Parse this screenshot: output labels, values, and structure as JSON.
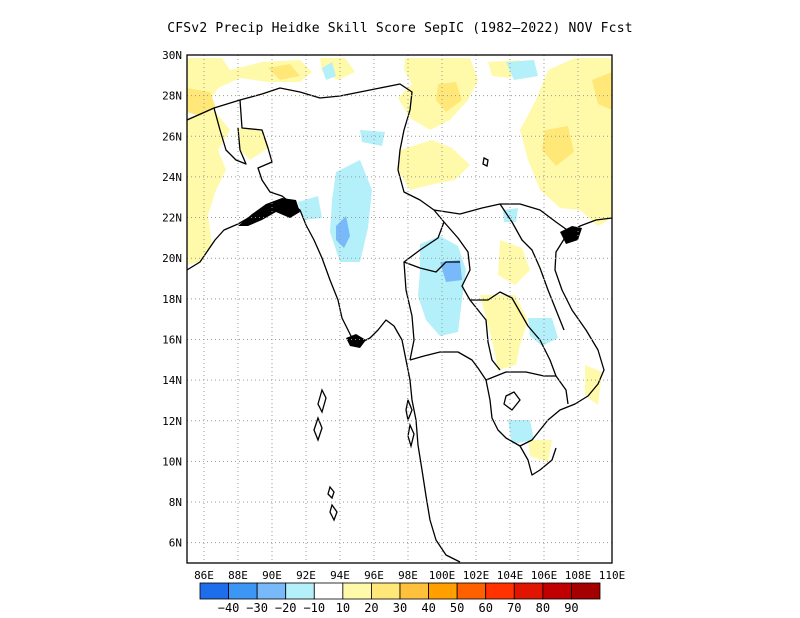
{
  "title": "CFSv2 Precip Heidke Skill Score SepIC (1982–2022) NOV Fcst",
  "map": {
    "lon_range": [
      85,
      110
    ],
    "lat_range": [
      5,
      30
    ],
    "lon_ticks": [
      {
        "v": 86,
        "label": "86E"
      },
      {
        "v": 88,
        "label": "88E"
      },
      {
        "v": 90,
        "label": "90E"
      },
      {
        "v": 92,
        "label": "92E"
      },
      {
        "v": 94,
        "label": "94E"
      },
      {
        "v": 96,
        "label": "96E"
      },
      {
        "v": 98,
        "label": "98E"
      },
      {
        "v": 100,
        "label": "100E"
      },
      {
        "v": 102,
        "label": "102E"
      },
      {
        "v": 104,
        "label": "104E"
      },
      {
        "v": 106,
        "label": "106E"
      },
      {
        "v": 108,
        "label": "108E"
      },
      {
        "v": 110,
        "label": "110E"
      }
    ],
    "lat_ticks": [
      {
        "v": 6,
        "label": "6N"
      },
      {
        "v": 8,
        "label": "8N"
      },
      {
        "v": 10,
        "label": "10N"
      },
      {
        "v": 12,
        "label": "12N"
      },
      {
        "v": 14,
        "label": "14N"
      },
      {
        "v": 16,
        "label": "16N"
      },
      {
        "v": 18,
        "label": "18N"
      },
      {
        "v": 20,
        "label": "20N"
      },
      {
        "v": 22,
        "label": "22N"
      },
      {
        "v": 24,
        "label": "24N"
      },
      {
        "v": 26,
        "label": "26N"
      },
      {
        "v": 28,
        "label": "28N"
      },
      {
        "v": 30,
        "label": "30N"
      }
    ],
    "grid": "dotted"
  },
  "colorbar": {
    "bins": [
      {
        "color": "#1e6eeb"
      },
      {
        "color": "#3c96f5"
      },
      {
        "color": "#78b9fa"
      },
      {
        "color": "#b4f0fa"
      },
      {
        "color": "#ffffff"
      },
      {
        "color": "#fffaaa"
      },
      {
        "color": "#ffe878"
      },
      {
        "color": "#ffc03c"
      },
      {
        "color": "#ffa000"
      },
      {
        "color": "#ff6000"
      },
      {
        "color": "#ff3200"
      },
      {
        "color": "#e11400"
      },
      {
        "color": "#c00000"
      },
      {
        "color": "#a50000"
      }
    ],
    "labels": [
      "−40",
      "−30",
      "−20",
      "−10",
      "10",
      "20",
      "30",
      "40",
      "50",
      "60",
      "70",
      "80",
      "90"
    ]
  }
}
